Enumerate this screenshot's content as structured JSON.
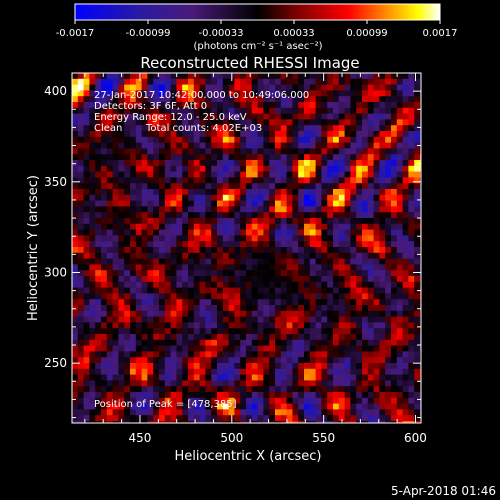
{
  "colorbar": {
    "tick_labels": [
      "-0.0017",
      "-0.00099",
      "-0.00033",
      "0.00033",
      "0.00099",
      "0.0017"
    ],
    "units_label": "(photons cm⁻² s⁻¹ asec⁻²)",
    "colors": [
      "#0000ff",
      "#2a1aa0",
      "#4a1a7a",
      "#000000",
      "#8a0000",
      "#ff0000",
      "#ff8800",
      "#ffff00",
      "#ffffff"
    ]
  },
  "chart_data": {
    "type": "heatmap",
    "title": "Reconstructed RHESSI Image",
    "xlabel": "Heliocentric X (arcsec)",
    "ylabel": "Heliocentric Y (arcsec)",
    "xlim": [
      413,
      603
    ],
    "ylim": [
      217,
      410
    ],
    "x_ticks": [
      450,
      500,
      550,
      600
    ],
    "y_ticks": [
      250,
      300,
      350,
      400
    ],
    "x_tick_labels": [
      "450",
      "500",
      "550",
      "600"
    ],
    "y_tick_labels": [
      "250",
      "300",
      "350",
      "400"
    ],
    "value_range": [
      -0.0017,
      0.0017
    ],
    "peak": {
      "x": 478,
      "y": 385
    },
    "annotations": {
      "time_range": "27-Jan-2017 10:42:00.000 to 10:49:06.000",
      "detectors": "Detectors: 3F 6F, Att 0",
      "energy": "Energy Range: 12.0 - 25.0 keV",
      "method": "Clean",
      "total_counts": "Total counts: 4.02E+03",
      "peak_position": "Position of Peak = [478,385]"
    }
  },
  "footer": {
    "date": "5-Apr-2018 01:46"
  }
}
